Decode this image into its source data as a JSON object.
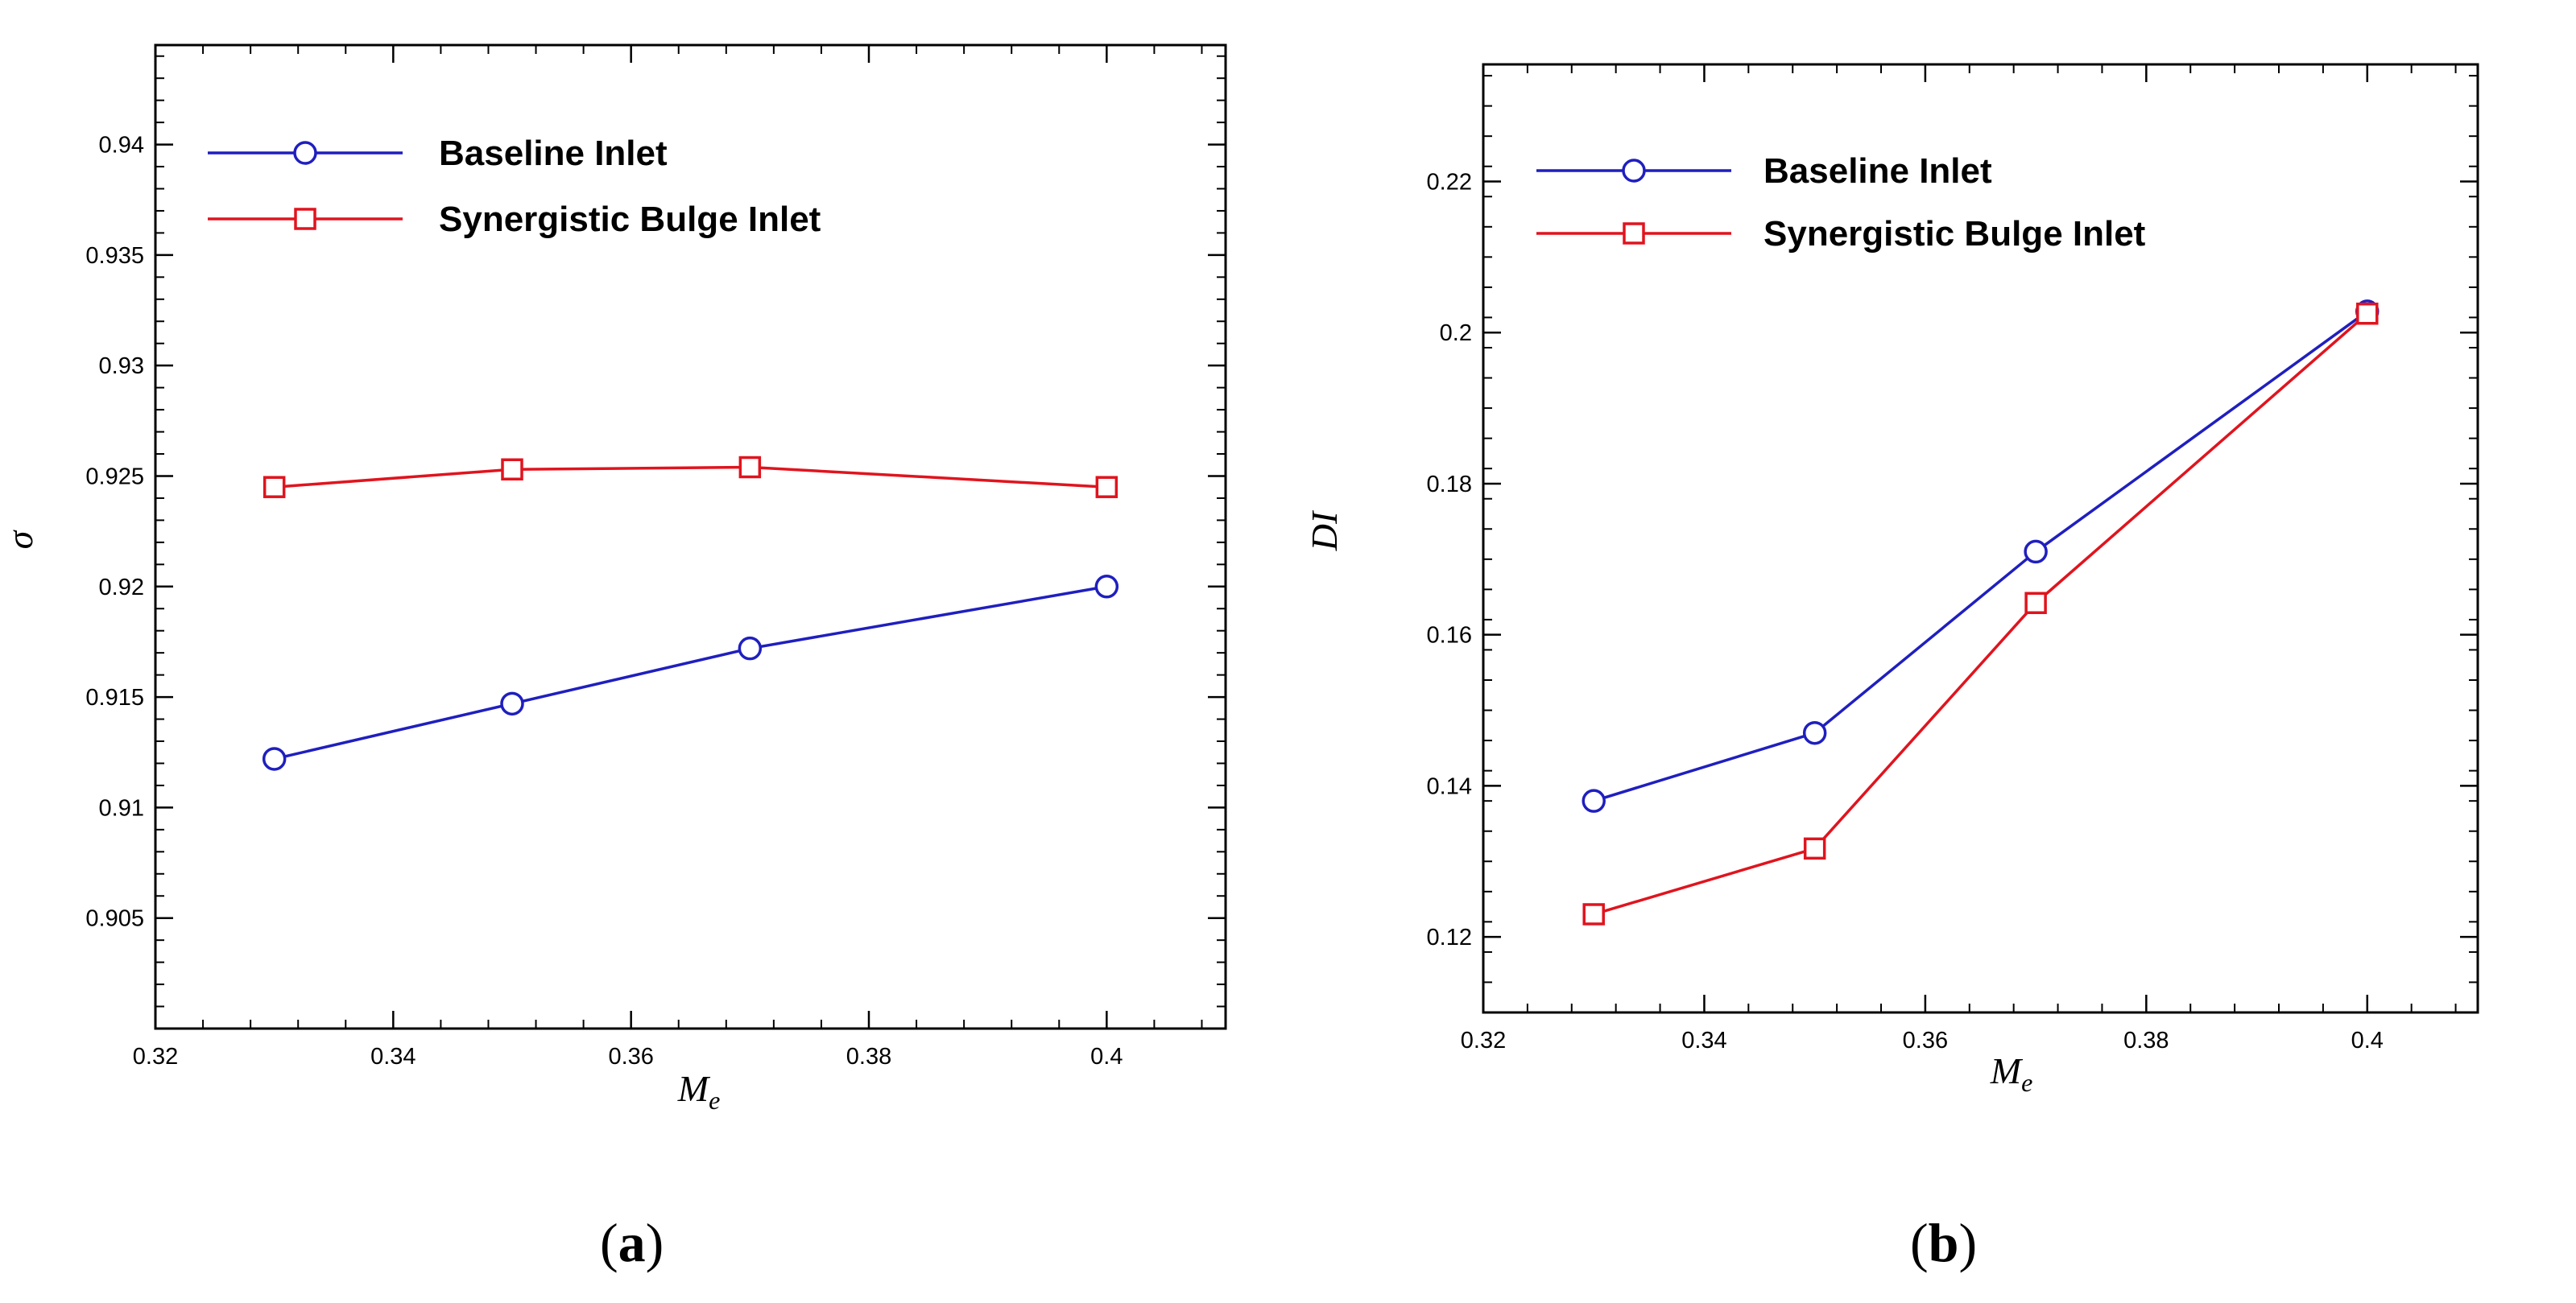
{
  "chart_data": [
    {
      "id": "a",
      "type": "line",
      "caption_letter": "a",
      "xlabel": "M",
      "xlabel_sub": "e",
      "ylabel": "σ",
      "xlim": [
        0.32,
        0.41
      ],
      "ylim": [
        0.9,
        0.9445
      ],
      "xticks": [
        0.32,
        0.34,
        0.36,
        0.38,
        0.4
      ],
      "xtick_labels": [
        "0.32",
        "0.34",
        "0.36",
        "0.38",
        "0.4"
      ],
      "yticks": [
        0.905,
        0.91,
        0.915,
        0.92,
        0.925,
        0.93,
        0.935,
        0.94
      ],
      "ytick_labels": [
        "0.905",
        "0.91",
        "0.915",
        "0.92",
        "0.925",
        "0.93",
        "0.935",
        "0.94"
      ],
      "legend_position": "top-left",
      "series": [
        {
          "name": "Baseline Inlet",
          "color": "#1f1fbf",
          "marker": "circle",
          "x": [
            0.33,
            0.35,
            0.37,
            0.4
          ],
          "values": [
            0.9122,
            0.9147,
            0.9172,
            0.92
          ]
        },
        {
          "name": "Synergistic Bulge Inlet",
          "color": "#e0141e",
          "marker": "square",
          "x": [
            0.33,
            0.35,
            0.37,
            0.4
          ],
          "values": [
            0.9245,
            0.9253,
            0.9254,
            0.9245
          ]
        }
      ]
    },
    {
      "id": "b",
      "type": "line",
      "caption_letter": "b",
      "xlabel": "M",
      "xlabel_sub": "e",
      "ylabel": "DI",
      "xlim": [
        0.32,
        0.41
      ],
      "ylim": [
        0.11,
        0.2355
      ],
      "xticks": [
        0.32,
        0.34,
        0.36,
        0.38,
        0.4
      ],
      "xtick_labels": [
        "0.32",
        "0.34",
        "0.36",
        "0.38",
        "0.4"
      ],
      "yticks": [
        0.12,
        0.14,
        0.16,
        0.18,
        0.2,
        0.22
      ],
      "ytick_labels": [
        "0.12",
        "0.14",
        "0.16",
        "0.18",
        "0.2",
        "0.22"
      ],
      "legend_position": "top-left",
      "series": [
        {
          "name": "Baseline Inlet",
          "color": "#1f1fbf",
          "marker": "circle",
          "x": [
            0.33,
            0.35,
            0.37,
            0.4
          ],
          "values": [
            0.138,
            0.147,
            0.171,
            0.2028
          ]
        },
        {
          "name": "Synergistic Bulge Inlet",
          "color": "#e0141e",
          "marker": "square",
          "x": [
            0.33,
            0.35,
            0.37,
            0.4
          ],
          "values": [
            0.123,
            0.1317,
            0.1642,
            0.2025
          ]
        }
      ]
    }
  ]
}
